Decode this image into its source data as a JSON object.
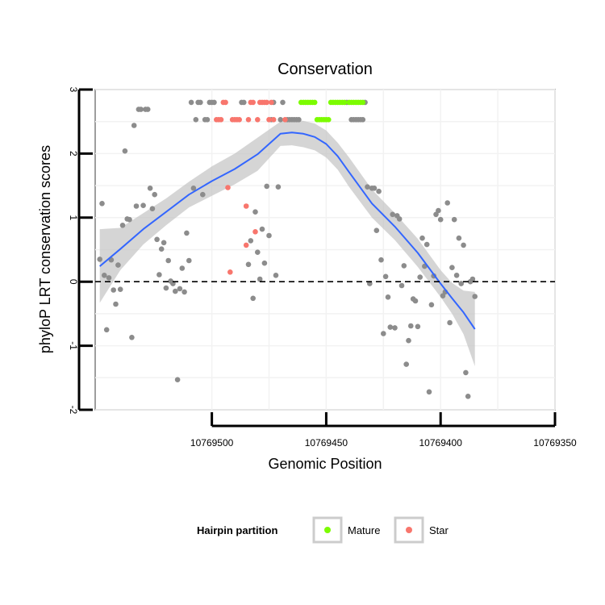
{
  "chart_data": {
    "type": "scatter",
    "title": "Conservation",
    "xlabel": "Genomic Position",
    "ylabel": "phyloP LRT conservation scores",
    "x_reversed": true,
    "xlim": [
      10769350,
      10769551
    ],
    "ylim": [
      -2,
      3
    ],
    "x_ticks": [
      10769500,
      10769450,
      10769400,
      10769350
    ],
    "x_tick_labels": [
      "10769500",
      "10769450",
      "10769400",
      "10769350"
    ],
    "y_ticks": [
      -2,
      -1,
      0,
      1,
      2,
      3
    ],
    "y_tick_labels": [
      "-2",
      "-1",
      "0",
      "1",
      "2",
      "3"
    ],
    "reference_line": {
      "y": 0,
      "style": "dashed"
    },
    "legend": {
      "title": "Hairpin partition",
      "placement": "bottom",
      "entries": [
        {
          "label": "Mature",
          "color": "#7CFC00"
        },
        {
          "label": "Star",
          "color": "#F8766D"
        }
      ]
    },
    "colors": {
      "other": "#8C8C8C",
      "Mature": "#7CFC00",
      "Star": "#F8766D",
      "smooth_line": "#3366FF",
      "ci_band": "#BEBEBE"
    },
    "series": [
      {
        "name": "Other",
        "color": "#8C8C8C",
        "points": [
          [
            10769549,
            0.35
          ],
          [
            10769548,
            1.22
          ],
          [
            10769547,
            0.1
          ],
          [
            10769546,
            -0.75
          ],
          [
            10769545,
            0.06
          ],
          [
            10769544,
            0.34
          ],
          [
            10769543,
            -0.13
          ],
          [
            10769542,
            -0.35
          ],
          [
            10769541,
            0.26
          ],
          [
            10769540,
            -0.12
          ],
          [
            10769539,
            0.88
          ],
          [
            10769538,
            2.04
          ],
          [
            10769537,
            0.98
          ],
          [
            10769536,
            0.97
          ],
          [
            10769535,
            -0.87
          ],
          [
            10769534,
            2.44
          ],
          [
            10769533,
            1.18
          ],
          [
            10769532,
            2.69
          ],
          [
            10769531,
            2.69
          ],
          [
            10769530,
            1.19
          ],
          [
            10769529,
            2.69
          ],
          [
            10769528,
            2.69
          ],
          [
            10769527,
            1.46
          ],
          [
            10769526,
            1.14
          ],
          [
            10769525,
            1.36
          ],
          [
            10769524,
            0.66
          ],
          [
            10769523,
            0.11
          ],
          [
            10769522,
            0.51
          ],
          [
            10769521,
            0.61
          ],
          [
            10769520,
            -0.1
          ],
          [
            10769519,
            0.33
          ],
          [
            10769518,
            0.01
          ],
          [
            10769517,
            -0.03
          ],
          [
            10769516,
            -0.15
          ],
          [
            10769515,
            -1.53
          ],
          [
            10769514,
            -0.11
          ],
          [
            10769513,
            0.21
          ],
          [
            10769512,
            -0.16
          ],
          [
            10769511,
            0.76
          ],
          [
            10769510,
            0.33
          ],
          [
            10769509,
            2.8
          ],
          [
            10769508,
            1.46
          ],
          [
            10769507,
            2.53
          ],
          [
            10769506,
            2.8
          ],
          [
            10769505,
            2.8
          ],
          [
            10769504,
            1.36
          ],
          [
            10769503,
            2.53
          ],
          [
            10769502,
            2.53
          ],
          [
            10769501,
            2.8
          ],
          [
            10769500,
            2.8
          ],
          [
            10769499,
            2.8
          ],
          [
            10769487,
            2.8
          ],
          [
            10769486,
            2.8
          ],
          [
            10769484,
            0.27
          ],
          [
            10769483,
            0.64
          ],
          [
            10769482,
            -0.26
          ],
          [
            10769481,
            1.09
          ],
          [
            10769480,
            0.46
          ],
          [
            10769479,
            0.04
          ],
          [
            10769478,
            0.82
          ],
          [
            10769477,
            0.29
          ],
          [
            10769476,
            1.49
          ],
          [
            10769475,
            0.72
          ],
          [
            10769474,
            2.53
          ],
          [
            10769473,
            2.8
          ],
          [
            10769472,
            0.1
          ],
          [
            10769471,
            1.48
          ],
          [
            10769470,
            2.53
          ],
          [
            10769469,
            2.8
          ],
          [
            10769467,
            2.53
          ],
          [
            10769466,
            2.53
          ],
          [
            10769465,
            2.53
          ],
          [
            10769464,
            2.53
          ],
          [
            10769463,
            2.53
          ],
          [
            10769462,
            2.53
          ],
          [
            10769441,
            2.8
          ],
          [
            10769439,
            2.53
          ],
          [
            10769438,
            2.53
          ],
          [
            10769437,
            2.53
          ],
          [
            10769436,
            2.53
          ],
          [
            10769435,
            2.53
          ],
          [
            10769434,
            2.53
          ],
          [
            10769433,
            2.8
          ],
          [
            10769432,
            1.48
          ],
          [
            10769431,
            -0.03
          ],
          [
            10769430,
            1.46
          ],
          [
            10769429,
            1.46
          ],
          [
            10769428,
            0.8
          ],
          [
            10769427,
            1.41
          ],
          [
            10769426,
            0.34
          ],
          [
            10769425,
            -0.81
          ],
          [
            10769424,
            0.08
          ],
          [
            10769423,
            -0.24
          ],
          [
            10769422,
            -0.71
          ],
          [
            10769421,
            1.05
          ],
          [
            10769420,
            -0.72
          ],
          [
            10769419,
            1.03
          ],
          [
            10769418,
            0.98
          ],
          [
            10769417,
            -0.06
          ],
          [
            10769416,
            0.25
          ],
          [
            10769415,
            -1.29
          ],
          [
            10769414,
            -0.92
          ],
          [
            10769413,
            -0.69
          ],
          [
            10769412,
            -0.27
          ],
          [
            10769411,
            -0.3
          ],
          [
            10769410,
            -0.7
          ],
          [
            10769409,
            0.07
          ],
          [
            10769408,
            0.68
          ],
          [
            10769407,
            0.24
          ],
          [
            10769406,
            0.58
          ],
          [
            10769405,
            -1.72
          ],
          [
            10769404,
            -0.36
          ],
          [
            10769403,
            0.09
          ],
          [
            10769402,
            1.05
          ],
          [
            10769401,
            1.11
          ],
          [
            10769400,
            0.97
          ],
          [
            10769399,
            -0.22
          ],
          [
            10769398,
            -0.16
          ],
          [
            10769397,
            1.23
          ],
          [
            10769396,
            -0.64
          ],
          [
            10769395,
            0.22
          ],
          [
            10769394,
            0.97
          ],
          [
            10769393,
            0.1
          ],
          [
            10769392,
            0.68
          ],
          [
            10769391,
            -0.03
          ],
          [
            10769390,
            0.57
          ],
          [
            10769389,
            -1.42
          ],
          [
            10769388,
            -1.79
          ],
          [
            10769387,
            0.0
          ],
          [
            10769386,
            0.04
          ],
          [
            10769385,
            -0.23
          ]
        ]
      },
      {
        "name": "Star",
        "color": "#F8766D",
        "points": [
          [
            10769498,
            2.53
          ],
          [
            10769497,
            2.53
          ],
          [
            10769496,
            2.53
          ],
          [
            10769495,
            2.8
          ],
          [
            10769494,
            2.8
          ],
          [
            10769493,
            1.47
          ],
          [
            10769492,
            0.15
          ],
          [
            10769491,
            2.53
          ],
          [
            10769490,
            2.53
          ],
          [
            10769489,
            2.53
          ],
          [
            10769488,
            2.53
          ],
          [
            10769485,
            0.57
          ],
          [
            10769485,
            1.18
          ],
          [
            10769484,
            2.53
          ],
          [
            10769483,
            2.8
          ],
          [
            10769482,
            2.8
          ],
          [
            10769481,
            0.78
          ],
          [
            10769480,
            2.53
          ],
          [
            10769479,
            2.8
          ],
          [
            10769478,
            2.8
          ],
          [
            10769477,
            2.8
          ],
          [
            10769476,
            2.8
          ],
          [
            10769475,
            2.53
          ],
          [
            10769474,
            2.8
          ],
          [
            10769473,
            2.53
          ],
          [
            10769468,
            2.53
          ]
        ]
      },
      {
        "name": "Mature",
        "color": "#7CFC00",
        "points": [
          [
            10769461,
            2.8
          ],
          [
            10769460,
            2.8
          ],
          [
            10769459,
            2.8
          ],
          [
            10769458,
            2.8
          ],
          [
            10769457,
            2.8
          ],
          [
            10769456,
            2.8
          ],
          [
            10769455,
            2.8
          ],
          [
            10769454,
            2.53
          ],
          [
            10769453,
            2.53
          ],
          [
            10769452,
            2.53
          ],
          [
            10769451,
            2.53
          ],
          [
            10769450,
            2.53
          ],
          [
            10769449,
            2.53
          ],
          [
            10769448,
            2.8
          ],
          [
            10769447,
            2.8
          ],
          [
            10769446,
            2.8
          ],
          [
            10769445,
            2.8
          ],
          [
            10769444,
            2.8
          ],
          [
            10769443,
            2.8
          ],
          [
            10769442,
            2.8
          ],
          [
            10769440,
            2.8
          ],
          [
            10769439,
            2.8
          ],
          [
            10769438,
            2.8
          ],
          [
            10769437,
            2.8
          ],
          [
            10769436,
            2.8
          ],
          [
            10769435,
            2.8
          ],
          [
            10769434,
            2.8
          ]
        ]
      }
    ],
    "smooth": {
      "method": "loess",
      "x": [
        10769549,
        10769540,
        10769530,
        10769520,
        10769510,
        10769500,
        10769490,
        10769480,
        10769470,
        10769465,
        10769460,
        10769455,
        10769450,
        10769445,
        10769440,
        10769430,
        10769420,
        10769410,
        10769400,
        10769395,
        10769390,
        10769385
      ],
      "y": [
        0.24,
        0.51,
        0.82,
        1.09,
        1.36,
        1.57,
        1.76,
        1.99,
        2.31,
        2.33,
        2.31,
        2.26,
        2.15,
        1.96,
        1.71,
        1.22,
        0.86,
        0.45,
        -0.03,
        -0.26,
        -0.48,
        -0.74
      ],
      "ci_lower": [
        -0.33,
        0.18,
        0.58,
        0.88,
        1.16,
        1.34,
        1.52,
        1.73,
        2.12,
        2.13,
        2.1,
        2.05,
        1.94,
        1.75,
        1.48,
        1.0,
        0.65,
        0.23,
        -0.24,
        -0.5,
        -0.82,
        -1.32
      ],
      "ci_upper": [
        0.82,
        0.84,
        1.07,
        1.3,
        1.56,
        1.8,
        2.0,
        2.25,
        2.5,
        2.53,
        2.51,
        2.47,
        2.36,
        2.17,
        1.94,
        1.44,
        1.07,
        0.67,
        0.18,
        -0.02,
        -0.14,
        -0.16
      ]
    }
  }
}
